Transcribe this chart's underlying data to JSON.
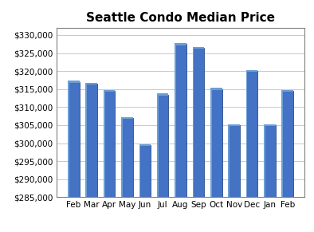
{
  "title": "Seattle Condo Median Price",
  "categories": [
    "Feb",
    "Mar",
    "Apr",
    "May",
    "Jun",
    "Jul",
    "Aug",
    "Sep",
    "Oct",
    "Nov",
    "Dec",
    "Jan",
    "Feb"
  ],
  "values": [
    317000,
    316500,
    314500,
    307000,
    299500,
    313500,
    327500,
    326500,
    315000,
    305000,
    320000,
    305000,
    314500
  ],
  "bar_color": "#4472C4",
  "bar_color_light": "#6B9FD4",
  "bar_color_dark": "#2A4E8C",
  "ylim": [
    285000,
    332000
  ],
  "yticks": [
    285000,
    290000,
    295000,
    300000,
    305000,
    310000,
    315000,
    320000,
    325000,
    330000
  ],
  "title_fontsize": 11,
  "tick_fontsize": 7.5,
  "background_color": "#FFFFFF",
  "plot_bg_color": "#FFFFFF",
  "grid_color": "#C0C0C0",
  "border_color": "#808080"
}
